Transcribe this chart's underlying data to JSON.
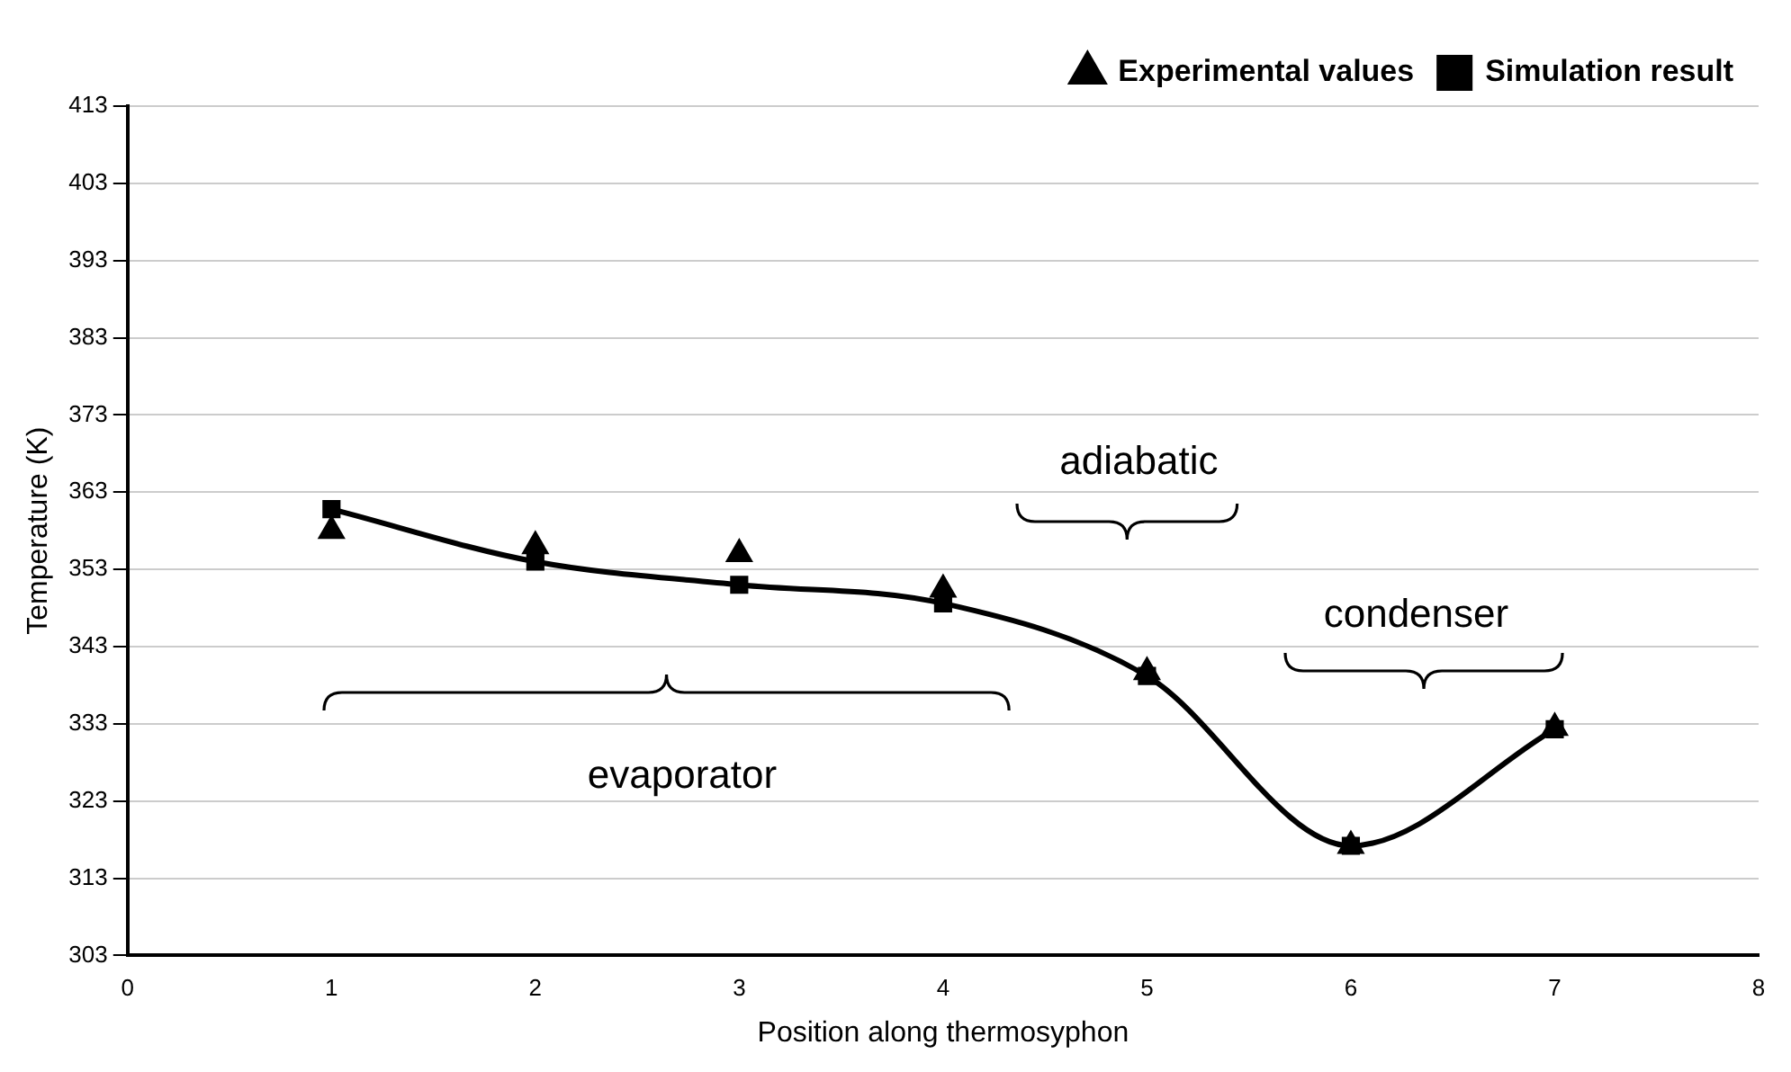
{
  "chart_data": {
    "type": "scatter",
    "xlabel": "Position along thermosyphon",
    "ylabel": "Temperature (K)",
    "x": [
      1,
      2,
      3,
      4,
      5,
      6,
      7
    ],
    "series": [
      {
        "name": "Experimental values",
        "color": "#000000",
        "marker": "triangle",
        "values": [
          358,
          356,
          355,
          350.4,
          339.7,
          317.2,
          332.5
        ]
      },
      {
        "name": "Simulation result",
        "type": "line",
        "color": "#000000",
        "marker": "square",
        "line_style": "solid",
        "values": [
          360.8,
          354,
          351,
          348.6,
          339.2,
          317.2,
          332.3
        ]
      }
    ],
    "xlim": [
      0,
      8
    ],
    "xticks": [
      0,
      1,
      2,
      3,
      4,
      5,
      6,
      7,
      8
    ],
    "ylim": [
      303,
      413
    ],
    "yticks": [
      303,
      313,
      323,
      333,
      343,
      353,
      363,
      373,
      383,
      393,
      403,
      413
    ],
    "grid": "y",
    "legend": "top right",
    "annotations": [
      "evaporator",
      "adiabatic",
      "condenser"
    ]
  }
}
